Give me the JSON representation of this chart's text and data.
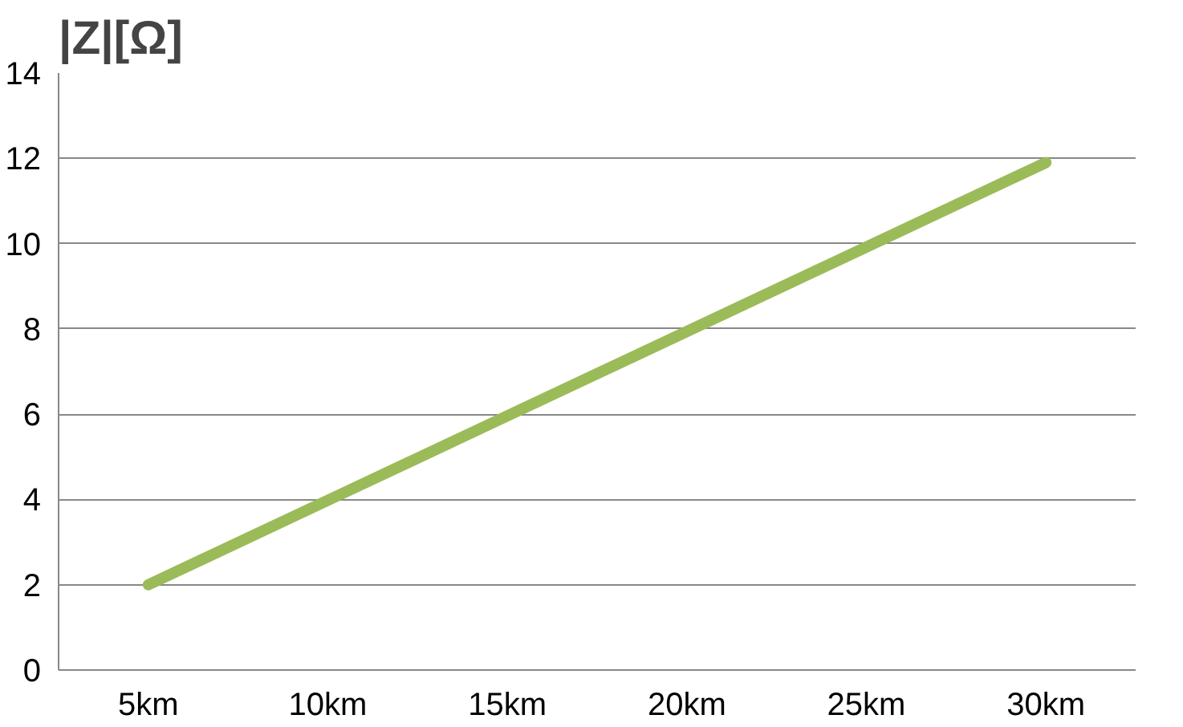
{
  "chart_data": {
    "type": "line",
    "title": "|Z|[Ω]",
    "categories": [
      "5km",
      "10km",
      "15km",
      "20km",
      "25km",
      "30km"
    ],
    "series": [
      {
        "color": "#9bbb59",
        "values": [
          2,
          3.98,
          5.96,
          7.94,
          9.92,
          11.9
        ]
      }
    ],
    "ylim": [
      0,
      14
    ],
    "yticks": [
      0,
      2,
      4,
      6,
      8,
      10,
      12,
      14
    ],
    "grid": "y",
    "marker": "none",
    "line_style": "solid"
  }
}
